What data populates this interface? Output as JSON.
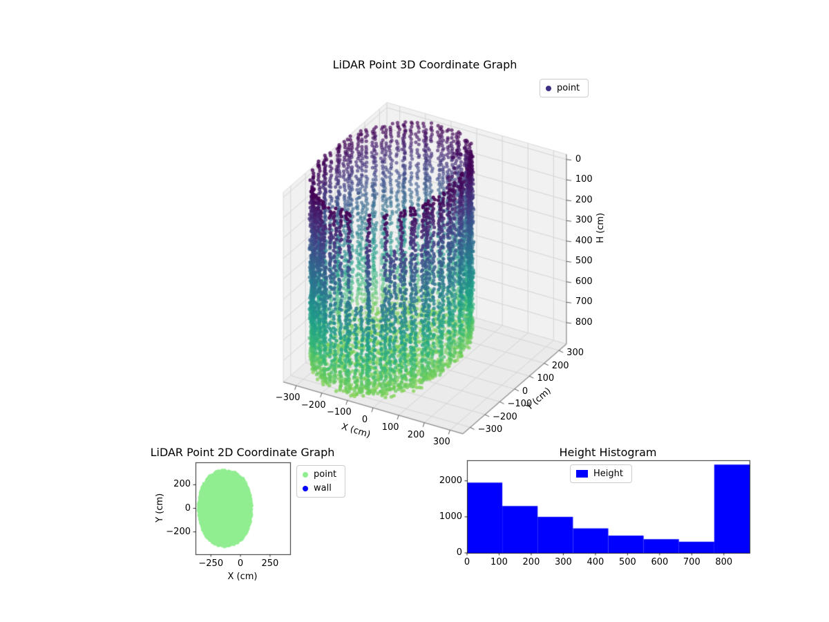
{
  "figure": {
    "background": "#ffffff"
  },
  "chart_data": [
    {
      "id": "plot3d",
      "type": "scatter3d",
      "title": "LiDAR Point 3D Coordinate Graph",
      "xlabel": "X (cm)",
      "ylabel": "Y (cm)",
      "zlabel": "H (cm)",
      "xticks": [
        -300,
        -200,
        -100,
        0,
        100,
        200,
        300
      ],
      "yticks": [
        -300,
        -200,
        -100,
        0,
        100,
        200,
        300
      ],
      "zticks": [
        0,
        100,
        200,
        300,
        400,
        500,
        600,
        700,
        800
      ],
      "xlim": [
        -350,
        350
      ],
      "ylim": [
        -350,
        350
      ],
      "zlim": [
        -25,
        905
      ],
      "z_axis_inverted": true,
      "colormap": "viridis",
      "legend": [
        {
          "label": "point",
          "color": "#3a2f82"
        }
      ],
      "points_model": {
        "description": "Room LiDAR scan: cylindrical wall of point columns colored by height (viridis: dark purple at H=0 top to light green near H=880 bottom), dense floor disk at H~880, sparse gaps in upper front-left wall, small dark clusters near the top interior.",
        "wall_center_xy": [
          -130,
          0
        ],
        "wall_half_extents_xy": [
          235,
          330
        ],
        "superellipse_exponent": 2.2,
        "wall_height_range_cm": [
          0,
          880
        ],
        "floor_height_cm": 880,
        "column_step_deg": 4,
        "row_step_cm": 13
      }
    },
    {
      "id": "plot2d",
      "type": "scatter2d",
      "title": "LiDAR Point 2D Coordinate Graph",
      "xlabel": "X (cm)",
      "ylabel": "Y (cm)",
      "xticks": [
        -250,
        0,
        250
      ],
      "yticks": [
        -200,
        0,
        200
      ],
      "xlim": [
        -380,
        420
      ],
      "ylim": [
        -390,
        390
      ],
      "legend": [
        {
          "label": "point",
          "color": "#90ee90"
        },
        {
          "label": "wall",
          "color": "#0000ff"
        }
      ],
      "region": {
        "center_xy": [
          -130,
          0
        ],
        "half_extents_xy": [
          235,
          330
        ],
        "superellipse_exponent": 2.2,
        "fill": "#90ee90"
      }
    },
    {
      "id": "hist",
      "type": "bar",
      "title": "Height Histogram",
      "legend": [
        {
          "label": "Height",
          "color": "#0000ff"
        }
      ],
      "bin_edges": [
        0,
        110,
        220,
        330,
        440,
        550,
        660,
        770,
        880
      ],
      "counts": [
        1950,
        1300,
        1000,
        680,
        480,
        380,
        310,
        2450
      ],
      "xticks": [
        0,
        100,
        200,
        300,
        400,
        500,
        600,
        700,
        800
      ],
      "yticks": [
        0,
        1000,
        2000
      ],
      "xlim": [
        0,
        880
      ],
      "ylim": [
        0,
        2570
      ],
      "bar_color": "#0000ff"
    }
  ]
}
